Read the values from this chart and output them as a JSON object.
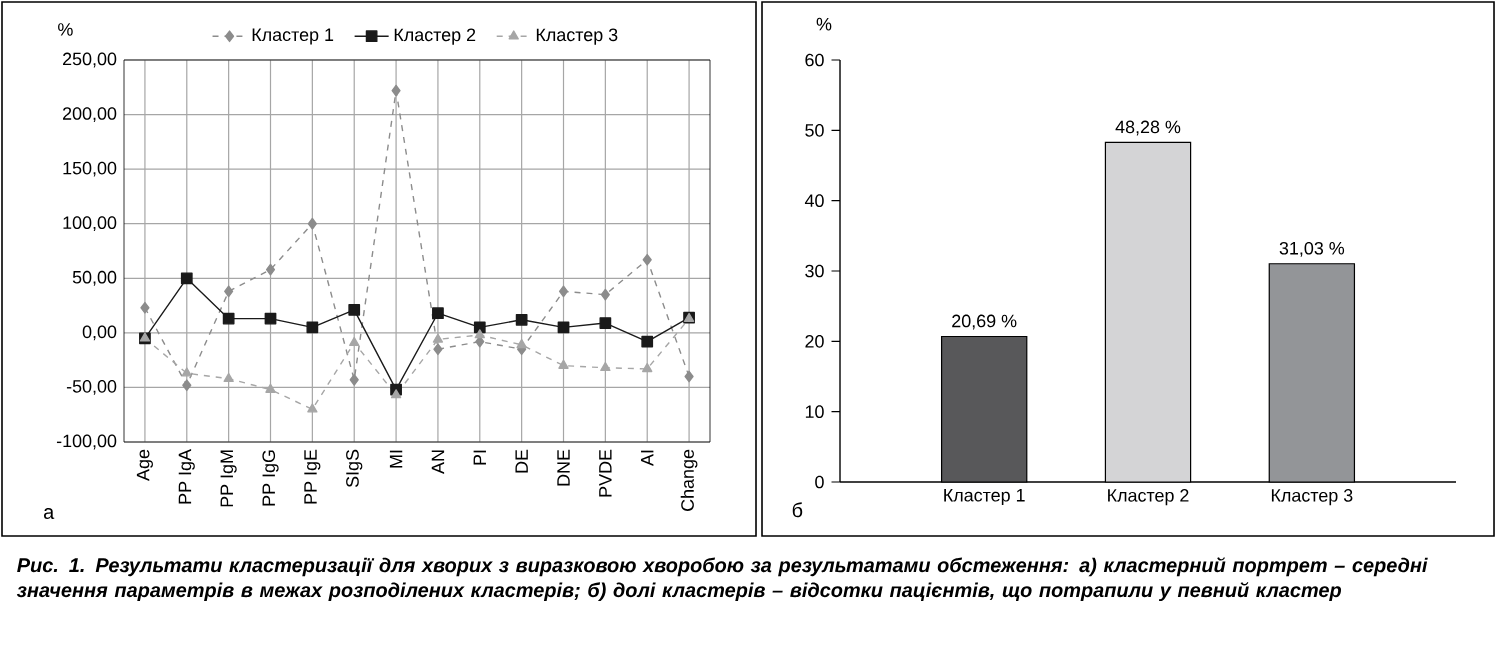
{
  "chart_data": [
    {
      "type": "line",
      "ylabel": "%",
      "categories": [
        "Age",
        "PP IgA",
        "PP IgM",
        "PP IgG",
        "PP IgE",
        "SIgS",
        "MI",
        "AN",
        "PI",
        "DE",
        "DNE",
        "PVDE",
        "AI",
        "Change"
      ],
      "series": [
        {
          "name": "Кластер 1",
          "color": "#8c8c8c",
          "marker": "diamond",
          "line_style": "dashed",
          "values": [
            23,
            -48,
            38,
            58,
            100,
            -43,
            222,
            -15,
            -8,
            -15,
            38,
            35,
            67,
            -40
          ]
        },
        {
          "name": "Кластер 2",
          "color": "#1a1a1a",
          "marker": "square",
          "line_style": "solid",
          "values": [
            -5,
            50,
            13,
            13,
            5,
            21,
            -52,
            18,
            5,
            12,
            5,
            9,
            -8,
            14
          ]
        },
        {
          "name": "Кластер 3",
          "color": "#a6a6a6",
          "marker": "triangle",
          "line_style": "dashed",
          "values": [
            -5,
            -37,
            -42,
            -52,
            -70,
            -9,
            -57,
            -6,
            -2,
            -11,
            -30,
            -32,
            -33,
            13
          ]
        }
      ],
      "ylim": [
        -100,
        250
      ],
      "yticks": [
        {
          "value": -100,
          "label": "-100,00"
        },
        {
          "value": -50,
          "label": "-50,00"
        },
        {
          "value": 0,
          "label": "0,00"
        },
        {
          "value": 50,
          "label": "50,00"
        },
        {
          "value": 100,
          "label": "100,00"
        },
        {
          "value": 150,
          "label": "150,00"
        },
        {
          "value": 200,
          "label": "200,00"
        },
        {
          "value": 250,
          "label": "250,00"
        }
      ],
      "grid": true,
      "legend": "top",
      "annotations": [
        "а",
        "Рис. 1. Результати кластеризації для хворих з виразковою хворобою за результатами обстеження: а) кластерний портрет – середні значення параметрів в межах розподілених кластерів; б) долі кластерів – відсотки пацієнтів, що потрапили у певний кластер"
      ]
    },
    {
      "type": "bar",
      "ylabel": "%",
      "categories": [
        "Кластер 1",
        "Кластер 2",
        "Кластер 3"
      ],
      "values": [
        20.69,
        48.28,
        31.03
      ],
      "colors": [
        "#58585a",
        "#d4d4d6",
        "#939598"
      ],
      "value_labels": [
        "20,69 %",
        "48,28 %",
        "31,03 %"
      ],
      "ylim": [
        0,
        60
      ],
      "yticks": [
        0,
        10,
        20,
        30,
        40,
        50,
        60
      ],
      "grid": false,
      "annotations": [
        "б"
      ]
    }
  ]
}
